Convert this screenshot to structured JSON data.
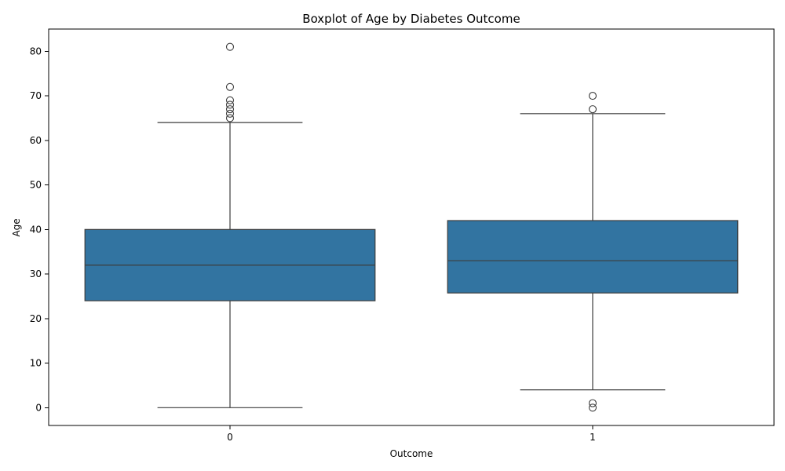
{
  "chart_data": {
    "type": "box",
    "title": "Boxplot of Age by Diabetes Outcome",
    "xlabel": "Outcome",
    "ylabel": "Age",
    "categories": [
      "0",
      "1"
    ],
    "ylim": [
      -4,
      85
    ],
    "yticks": [
      0,
      10,
      20,
      30,
      40,
      50,
      60,
      70,
      80
    ],
    "color": "#3274a1",
    "grid": false,
    "boxes": [
      {
        "category": "0",
        "whisker_low": 0,
        "q1": 24,
        "median": 32,
        "q3": 40,
        "whisker_high": 64,
        "outliers": [
          81,
          72,
          69,
          68,
          67,
          66,
          65
        ]
      },
      {
        "category": "1",
        "whisker_low": 4,
        "q1": 25.75,
        "median": 33,
        "q3": 42,
        "whisker_high": 66,
        "outliers": [
          70,
          67,
          1,
          0
        ]
      }
    ]
  }
}
